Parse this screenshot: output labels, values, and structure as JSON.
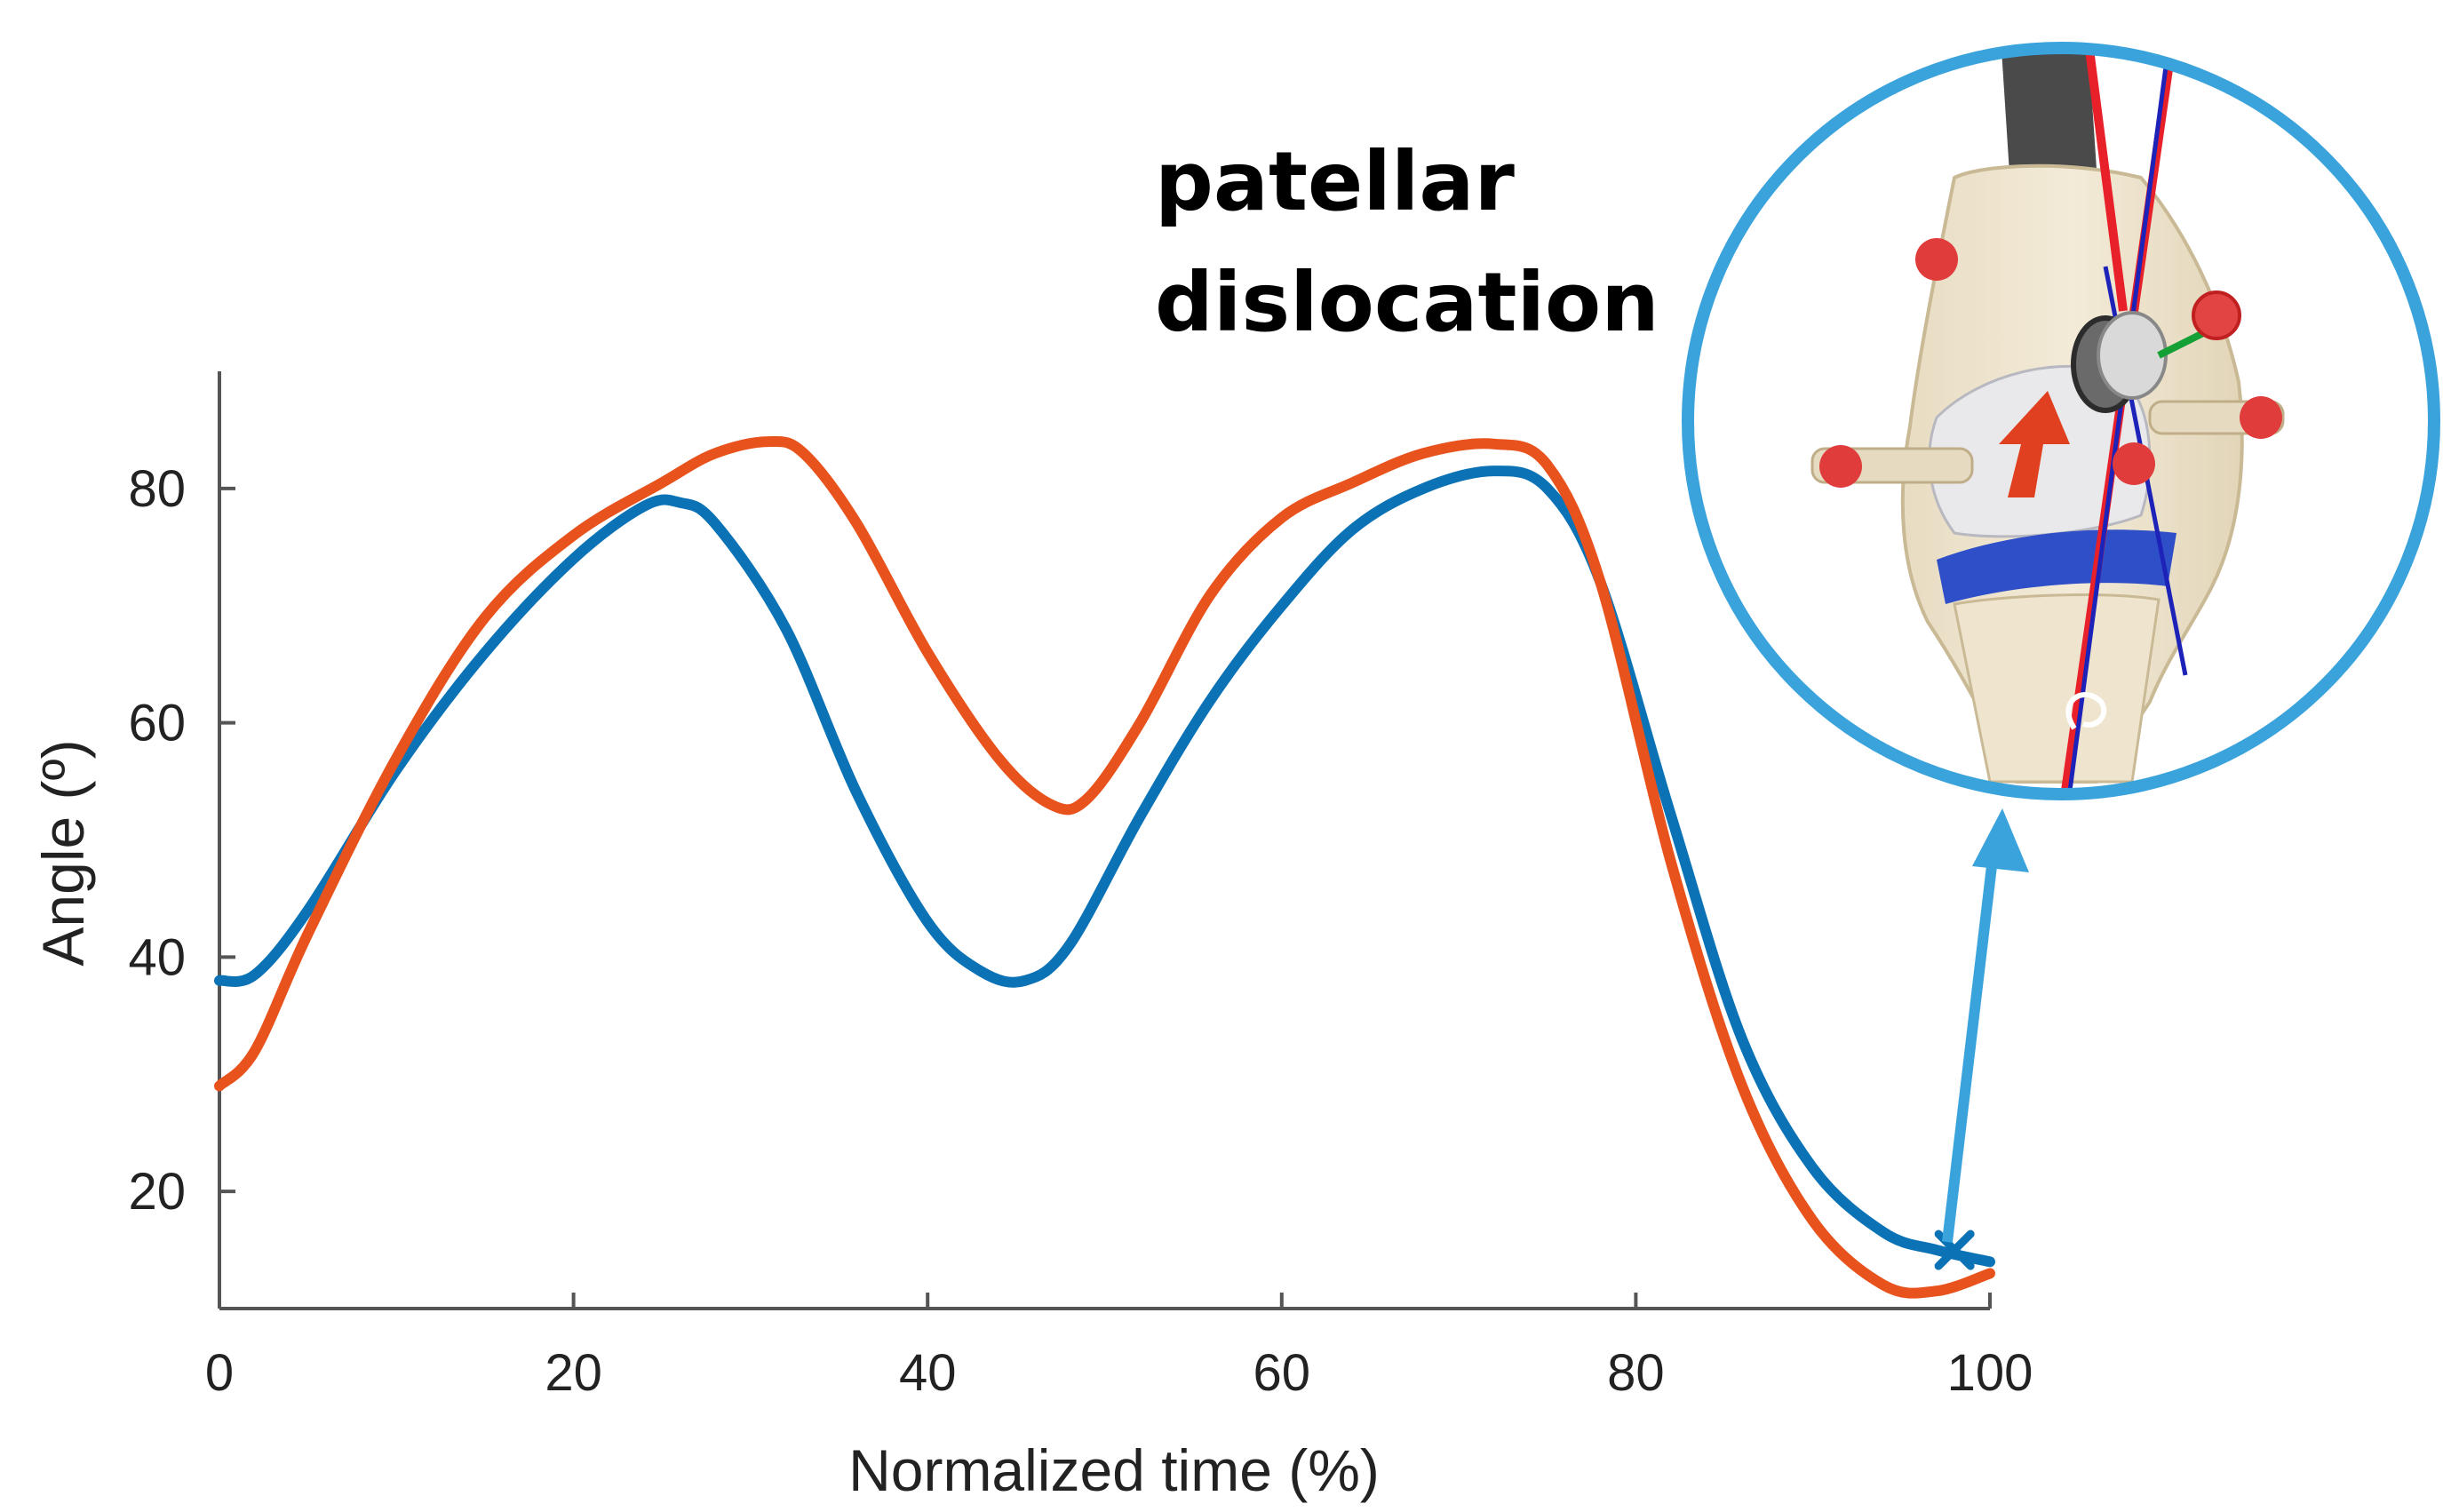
{
  "chart_data": {
    "type": "line",
    "title": "",
    "xlabel": "Normalized time (%)",
    "ylabel": "Angle (º)",
    "xlim": [
      0,
      100
    ],
    "ylim": [
      10,
      90
    ],
    "xticks": [
      "0",
      "20",
      "40",
      "60",
      "80",
      "100"
    ],
    "yticks": [
      "20",
      "40",
      "60",
      "80"
    ],
    "xtick_values": [
      0,
      20,
      40,
      60,
      80,
      100
    ],
    "ytick_values": [
      20,
      40,
      60,
      80
    ],
    "series": [
      {
        "name": "blue curve",
        "color": "#0b72b5",
        "x": [
          0,
          2,
          5,
          10,
          15,
          20,
          24,
          26,
          28,
          32,
          36,
          40,
          43,
          45.5,
          48,
          52,
          56,
          60,
          64,
          68,
          72,
          75,
          78,
          82,
          86,
          90,
          94,
          97,
          100
        ],
        "y": [
          38,
          38.5,
          44,
          56,
          66,
          74,
          78.5,
          78.8,
          77,
          68,
          54,
          43,
          38.8,
          38,
          41,
          52,
          62,
          70,
          76.5,
          80,
          81.5,
          80,
          72,
          52,
          33,
          22,
          16.5,
          15,
          14
        ]
      },
      {
        "name": "orange curve",
        "color": "#e8531d",
        "x": [
          0,
          2,
          5,
          10,
          15,
          20,
          25,
          28,
          31,
          33,
          36,
          40,
          44,
          47,
          49,
          52,
          56,
          60,
          64,
          68,
          72,
          75,
          78,
          82,
          86,
          90,
          94,
          97,
          100
        ],
        "y": [
          29,
          32,
          42,
          57,
          69,
          76,
          80.5,
          83,
          84,
          83,
          77,
          66,
          57,
          53,
          53.5,
          60,
          71,
          77.5,
          80.5,
          83,
          83.8,
          82,
          72,
          48,
          29,
          17.5,
          12,
          11.5,
          13
        ]
      }
    ],
    "marker": {
      "type": "x",
      "x": 98,
      "y": 15,
      "color": "#0b72b5"
    },
    "annotations": [
      {
        "text": "patellar",
        "x": 53,
        "y": 117
      },
      {
        "text": "dislocation",
        "x": 53,
        "y": 107
      }
    ],
    "inset": {
      "description": "knee joint model zoom",
      "border_color": "#3aa3dc"
    }
  }
}
